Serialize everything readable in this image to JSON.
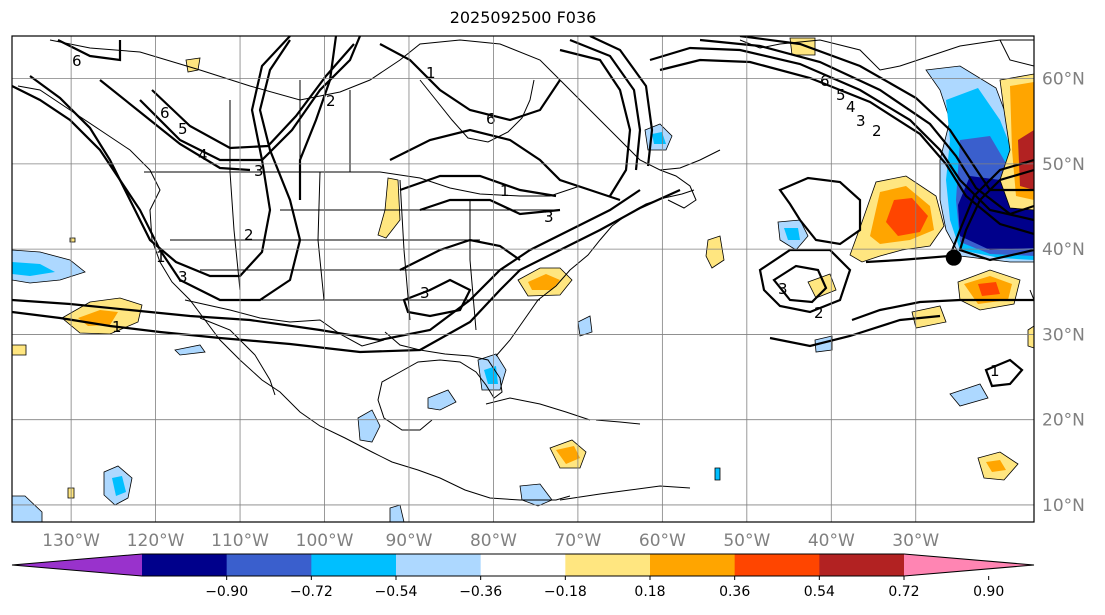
{
  "title": "2025092500 F036",
  "lat_labels": [
    "60°N",
    "50°N",
    "40°N",
    "30°N",
    "20°N",
    "10°N"
  ],
  "lat_values": [
    60,
    50,
    40,
    30,
    20,
    10
  ],
  "lon_labels": [
    "130°W",
    "120°W",
    "110°W",
    "100°W",
    "90°W",
    "80°W",
    "70°W",
    "60°W",
    "50°W",
    "40°W",
    "30°W"
  ],
  "lon_values": [
    -130,
    -120,
    -110,
    -100,
    -90,
    -80,
    -70,
    -60,
    -50,
    -40,
    -30
  ],
  "map_extent": {
    "lon_min": -137,
    "lon_max": -16,
    "lat_min": 8,
    "lat_max": 65
  },
  "colorbar": {
    "ticks": [
      "−0.90",
      "−0.72",
      "−0.54",
      "−0.36",
      "−0.18",
      "0.18",
      "0.36",
      "0.54",
      "0.72",
      "0.90"
    ],
    "colors": [
      "#9932cc",
      "#00008b",
      "#3a5fcd",
      "#00bfff",
      "#add8ff",
      "#ffffff",
      "#ffe680",
      "#ffa500",
      "#ff4500",
      "#b22222",
      "#ff85b3"
    ]
  },
  "contour_labels": [
    "6",
    "6",
    "6",
    "5",
    "4",
    "3",
    "2",
    "1",
    "1",
    "1",
    "2",
    "3",
    "3",
    "3",
    "3",
    "2",
    "1",
    "6",
    "5",
    "4",
    "3",
    "2",
    "1"
  ],
  "marker": {
    "lon": -25.5,
    "lat": 39
  }
}
